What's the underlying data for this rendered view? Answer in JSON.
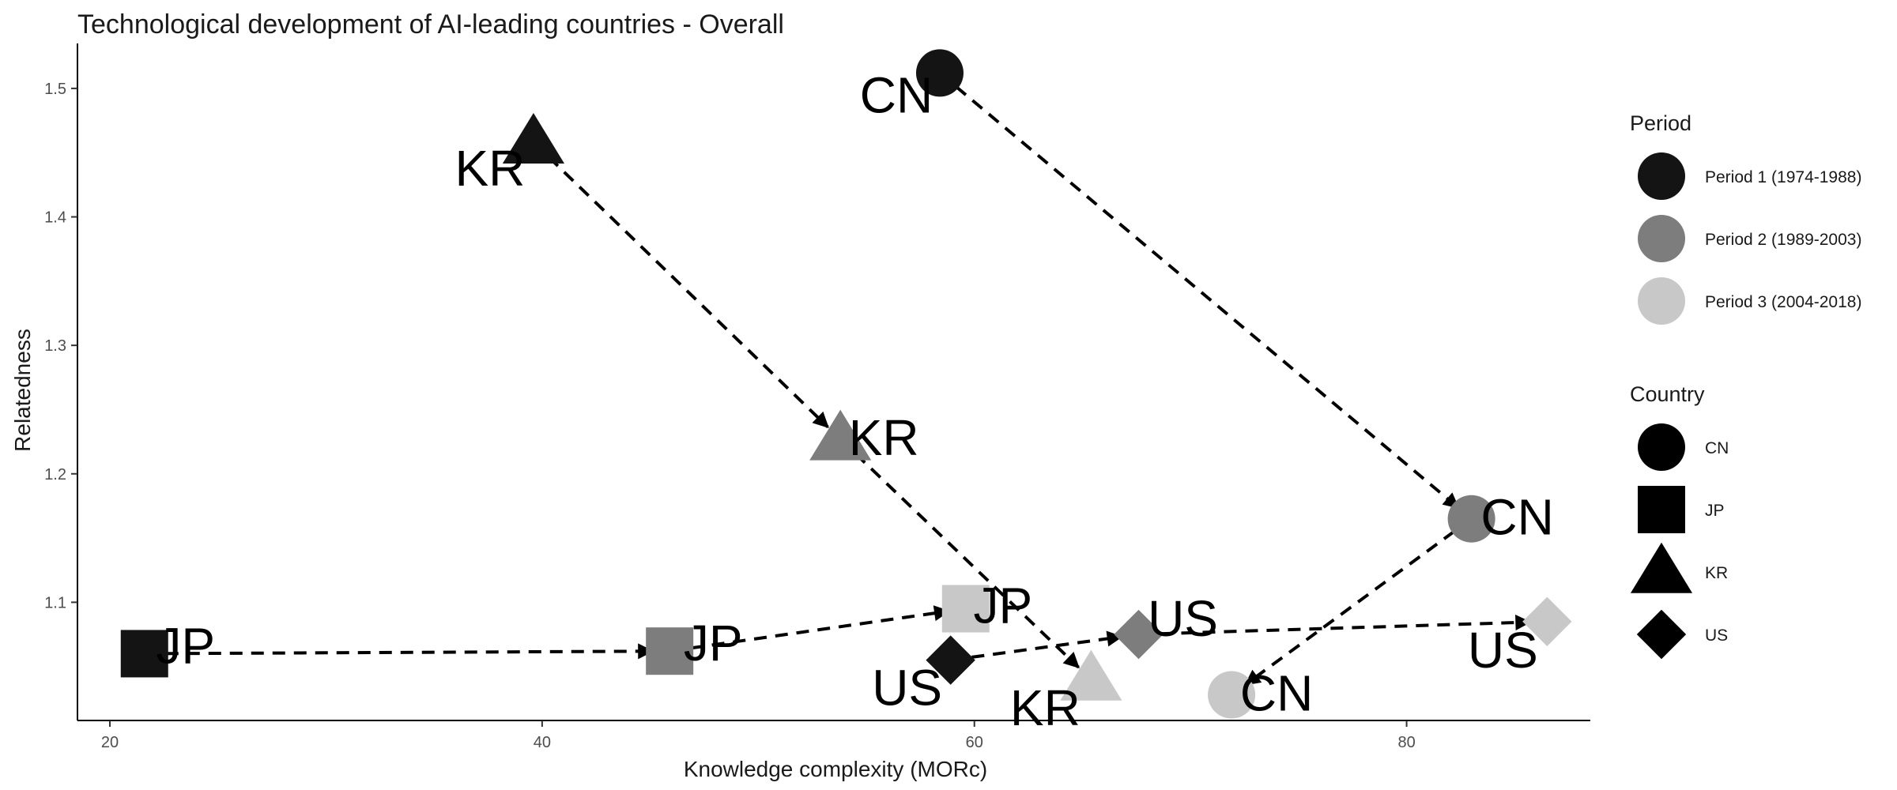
{
  "chart_data": {
    "type": "scatter",
    "title": "Technological development of AI-leading countries - Overall",
    "xlabel": "Knowledge complexity (MORc)",
    "ylabel": "Relatedness",
    "xlim": [
      18.5,
      88.5
    ],
    "ylim": [
      1.008,
      1.535
    ],
    "xticks": [
      20,
      40,
      60,
      80
    ],
    "yticks": [
      1.1,
      1.2,
      1.3,
      1.4,
      1.5
    ],
    "grid": false,
    "legend_position": "right",
    "period_legend": {
      "title": "Period",
      "entries": [
        {
          "label": "Period 1 (1974-1988)",
          "color": "#141414"
        },
        {
          "label": "Period 2 (1989-2003)",
          "color": "#7d7d7d"
        },
        {
          "label": "Period 3 (2004-2018)",
          "color": "#c8c8c8"
        }
      ]
    },
    "country_legend": {
      "title": "Country",
      "entries": [
        {
          "label": "CN",
          "shape": "circle"
        },
        {
          "label": "JP",
          "shape": "square"
        },
        {
          "label": "KR",
          "shape": "triangle"
        },
        {
          "label": "US",
          "shape": "diamond"
        }
      ]
    },
    "series": [
      {
        "country": "CN",
        "shape": "circle",
        "points": [
          {
            "period": 1,
            "x": 58.4,
            "y": 1.512
          },
          {
            "period": 2,
            "x": 83.0,
            "y": 1.165
          },
          {
            "period": 3,
            "x": 71.9,
            "y": 1.028
          }
        ]
      },
      {
        "country": "JP",
        "shape": "square",
        "points": [
          {
            "period": 1,
            "x": 21.6,
            "y": 1.06
          },
          {
            "period": 2,
            "x": 45.9,
            "y": 1.062
          },
          {
            "period": 3,
            "x": 59.6,
            "y": 1.095
          }
        ]
      },
      {
        "country": "KR",
        "shape": "triangle",
        "points": [
          {
            "period": 1,
            "x": 39.6,
            "y": 1.458
          },
          {
            "period": 2,
            "x": 53.8,
            "y": 1.227
          },
          {
            "period": 3,
            "x": 65.4,
            "y": 1.04
          }
        ]
      },
      {
        "country": "US",
        "shape": "diamond",
        "points": [
          {
            "period": 1,
            "x": 58.9,
            "y": 1.055
          },
          {
            "period": 2,
            "x": 67.6,
            "y": 1.075
          },
          {
            "period": 3,
            "x": 86.5,
            "y": 1.085
          }
        ]
      }
    ]
  }
}
